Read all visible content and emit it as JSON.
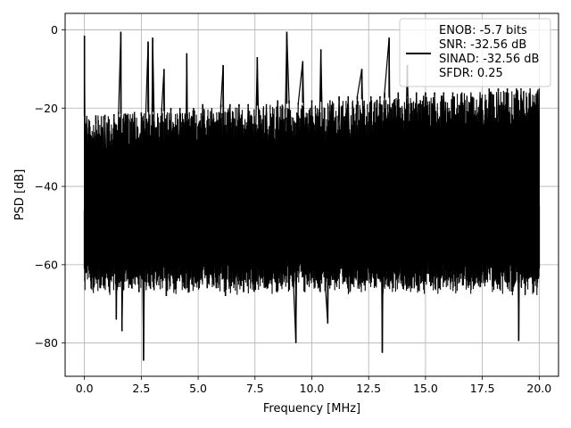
{
  "chart_data": {
    "type": "line",
    "title": "",
    "xlabel": "Frequency [MHz]",
    "ylabel": "PSD [dB]",
    "xlim": [
      -0.85,
      20.85
    ],
    "ylim": [
      -88.5,
      4.2
    ],
    "xticks": [
      0.0,
      2.5,
      5.0,
      7.5,
      10.0,
      12.5,
      15.0,
      17.5,
      20.0
    ],
    "xtick_labels": [
      "0.0",
      "2.5",
      "5.0",
      "7.5",
      "10.0",
      "12.5",
      "15.0",
      "17.5",
      "20.0"
    ],
    "yticks": [
      0,
      -20,
      -40,
      -60,
      -80
    ],
    "ytick_labels": [
      "0",
      "−20",
      "−40",
      "−60",
      "−80"
    ],
    "grid": true,
    "legend_position": "top-right",
    "line_color": "#000000",
    "series": [
      {
        "name": "ENOB: -5.7 bits\nSNR: -32.56 dB\nSINAD: -32.56 dB\nSFDR: 0.25",
        "legend_lines": [
          "ENOB: -5.7 bits",
          "SNR: -32.56 dB",
          "SINAD: -32.56 dB",
          "SFDR: 0.25"
        ],
        "noise_floor_db": [
          -61,
          -22
        ],
        "trace": [
          {
            "x": 0.0,
            "y": -46
          },
          {
            "x": 0.0,
            "y": -1.5
          },
          {
            "x": 0.05,
            "y": -60
          },
          {
            "x": 0.1,
            "y": -22
          },
          {
            "x": 0.3,
            "y": -64
          },
          {
            "x": 0.5,
            "y": -24
          },
          {
            "x": 0.7,
            "y": -66
          },
          {
            "x": 0.9,
            "y": -23
          },
          {
            "x": 1.1,
            "y": -67
          },
          {
            "x": 1.3,
            "y": -22
          },
          {
            "x": 1.4,
            "y": -74
          },
          {
            "x": 1.5,
            "y": -21
          },
          {
            "x": 1.6,
            "y": -0.5
          },
          {
            "x": 1.65,
            "y": -77
          },
          {
            "x": 1.8,
            "y": -22
          },
          {
            "x": 2.0,
            "y": -65
          },
          {
            "x": 2.2,
            "y": -21
          },
          {
            "x": 2.4,
            "y": -67
          },
          {
            "x": 2.5,
            "y": -22
          },
          {
            "x": 2.6,
            "y": -84.5
          },
          {
            "x": 2.7,
            "y": -21
          },
          {
            "x": 2.8,
            "y": -3
          },
          {
            "x": 2.9,
            "y": -66
          },
          {
            "x": 3.0,
            "y": -2
          },
          {
            "x": 3.2,
            "y": -64
          },
          {
            "x": 3.4,
            "y": -20
          },
          {
            "x": 3.5,
            "y": -10
          },
          {
            "x": 3.6,
            "y": -68
          },
          {
            "x": 3.8,
            "y": -20
          },
          {
            "x": 4.0,
            "y": -66
          },
          {
            "x": 4.2,
            "y": -20
          },
          {
            "x": 4.4,
            "y": -66
          },
          {
            "x": 4.5,
            "y": -6
          },
          {
            "x": 4.6,
            "y": -67
          },
          {
            "x": 4.8,
            "y": -20
          },
          {
            "x": 5.0,
            "y": -63
          },
          {
            "x": 5.2,
            "y": -19
          },
          {
            "x": 5.4,
            "y": -66
          },
          {
            "x": 5.6,
            "y": -20
          },
          {
            "x": 5.8,
            "y": -66
          },
          {
            "x": 6.0,
            "y": -19
          },
          {
            "x": 6.1,
            "y": -9
          },
          {
            "x": 6.2,
            "y": -68
          },
          {
            "x": 6.4,
            "y": -19
          },
          {
            "x": 6.6,
            "y": -65
          },
          {
            "x": 6.8,
            "y": -19
          },
          {
            "x": 7.0,
            "y": -67
          },
          {
            "x": 7.2,
            "y": -19
          },
          {
            "x": 7.4,
            "y": -65
          },
          {
            "x": 7.6,
            "y": -7
          },
          {
            "x": 7.8,
            "y": -63
          },
          {
            "x": 8.0,
            "y": -19
          },
          {
            "x": 8.2,
            "y": -64
          },
          {
            "x": 8.5,
            "y": -18
          },
          {
            "x": 8.7,
            "y": -65
          },
          {
            "x": 8.9,
            "y": -0.5
          },
          {
            "x": 9.0,
            "y": -18
          },
          {
            "x": 9.2,
            "y": -66
          },
          {
            "x": 9.3,
            "y": -80
          },
          {
            "x": 9.4,
            "y": -19
          },
          {
            "x": 9.6,
            "y": -8
          },
          {
            "x": 9.8,
            "y": -65
          },
          {
            "x": 10.0,
            "y": -18
          },
          {
            "x": 10.2,
            "y": -64
          },
          {
            "x": 10.4,
            "y": -5
          },
          {
            "x": 10.6,
            "y": -66
          },
          {
            "x": 10.7,
            "y": -75
          },
          {
            "x": 10.8,
            "y": -18
          },
          {
            "x": 11.0,
            "y": -63
          },
          {
            "x": 11.2,
            "y": -17
          },
          {
            "x": 11.4,
            "y": -64
          },
          {
            "x": 11.6,
            "y": -17
          },
          {
            "x": 11.8,
            "y": -65
          },
          {
            "x": 12.0,
            "y": -17
          },
          {
            "x": 12.2,
            "y": -10
          },
          {
            "x": 12.4,
            "y": -64
          },
          {
            "x": 12.6,
            "y": -17
          },
          {
            "x": 12.8,
            "y": -65
          },
          {
            "x": 13.0,
            "y": -17
          },
          {
            "x": 13.1,
            "y": -82.5
          },
          {
            "x": 13.2,
            "y": -16
          },
          {
            "x": 13.4,
            "y": -2
          },
          {
            "x": 13.5,
            "y": -64
          },
          {
            "x": 13.8,
            "y": -16
          },
          {
            "x": 14.0,
            "y": -62
          },
          {
            "x": 14.2,
            "y": -9
          },
          {
            "x": 14.4,
            "y": -66
          },
          {
            "x": 14.6,
            "y": -16
          },
          {
            "x": 14.8,
            "y": -63
          },
          {
            "x": 15.0,
            "y": -16
          },
          {
            "x": 15.2,
            "y": -64
          },
          {
            "x": 15.4,
            "y": -16
          },
          {
            "x": 15.6,
            "y": -66
          },
          {
            "x": 15.8,
            "y": -16
          },
          {
            "x": 16.0,
            "y": -64
          },
          {
            "x": 16.2,
            "y": -16
          },
          {
            "x": 16.4,
            "y": -62
          },
          {
            "x": 16.6,
            "y": -16
          },
          {
            "x": 16.8,
            "y": -64
          },
          {
            "x": 17.0,
            "y": -16
          },
          {
            "x": 17.2,
            "y": -62
          },
          {
            "x": 17.4,
            "y": -16
          },
          {
            "x": 17.6,
            "y": -64
          },
          {
            "x": 17.8,
            "y": -15
          },
          {
            "x": 18.0,
            "y": -65
          },
          {
            "x": 18.2,
            "y": -15
          },
          {
            "x": 18.4,
            "y": -63
          },
          {
            "x": 18.6,
            "y": -15
          },
          {
            "x": 18.8,
            "y": -64
          },
          {
            "x": 19.0,
            "y": -15
          },
          {
            "x": 19.1,
            "y": -79.5
          },
          {
            "x": 19.2,
            "y": -15
          },
          {
            "x": 19.4,
            "y": -62
          },
          {
            "x": 19.6,
            "y": -15
          },
          {
            "x": 19.8,
            "y": -63
          },
          {
            "x": 20.0,
            "y": -15
          },
          {
            "x": 20.0,
            "y": -45
          }
        ]
      }
    ]
  }
}
